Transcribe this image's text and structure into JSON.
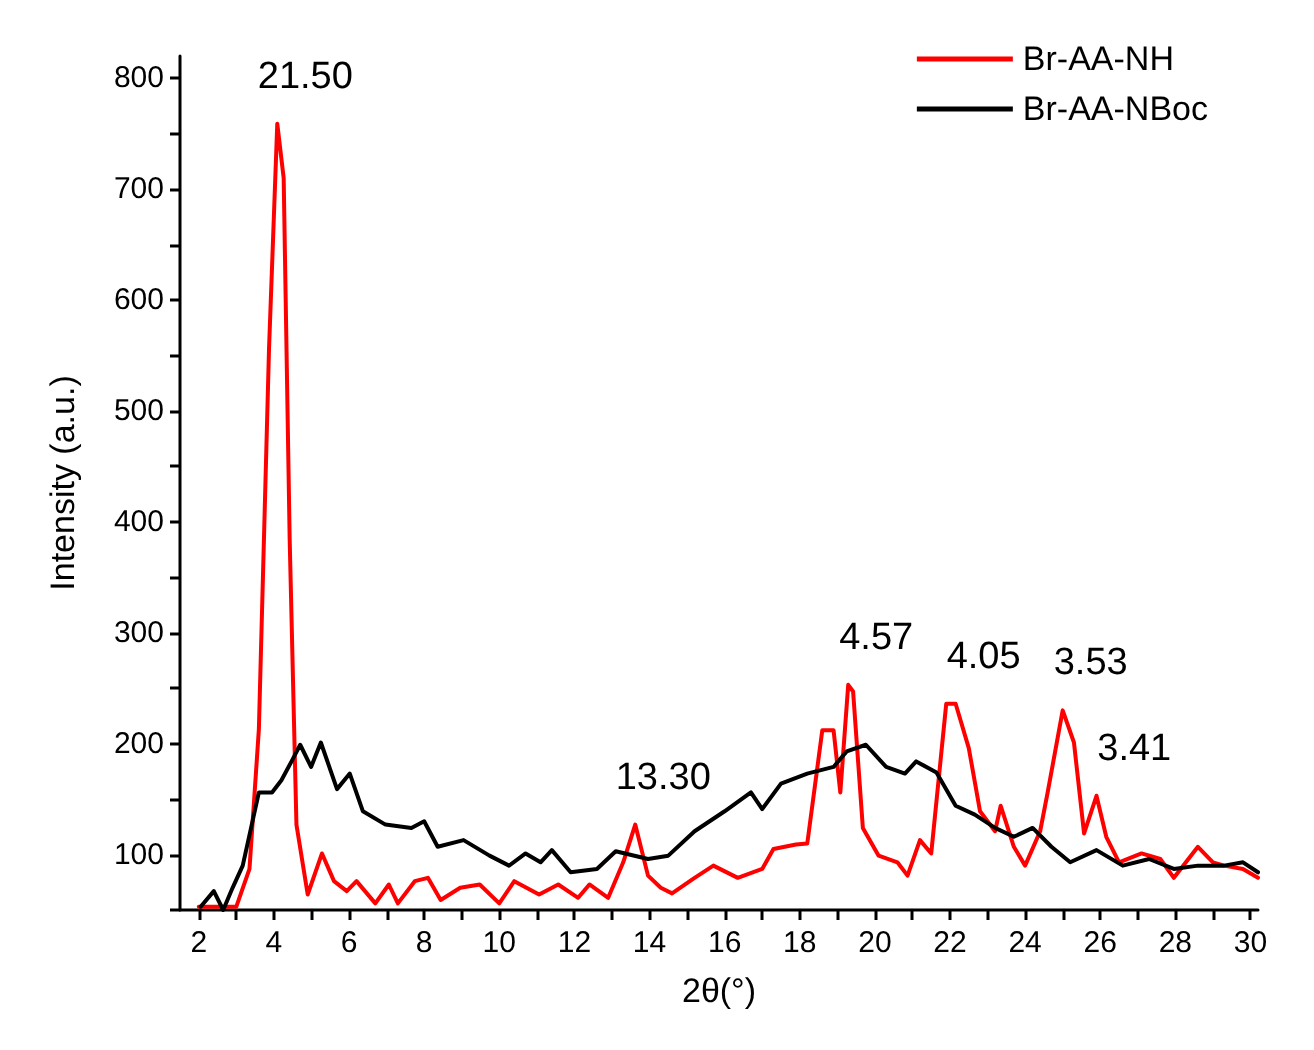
{
  "chart_data": {
    "type": "line",
    "xlabel": "2θ(°)",
    "ylabel": "Intensity (a.u.)",
    "xlim": [
      1.5,
      30.2
    ],
    "xticks": [
      2,
      {
        "value": 3,
        "label": null
      },
      4,
      {
        "value": 5,
        "label": null
      },
      6,
      {
        "value": 7,
        "label": null
      },
      8,
      {
        "value": 9,
        "label": null
      },
      10,
      {
        "value": 11,
        "label": null
      },
      12,
      {
        "value": 13,
        "label": null
      },
      14,
      {
        "value": 15,
        "label": null
      },
      16,
      {
        "value": 17,
        "label": null
      },
      18,
      {
        "value": 19,
        "label": null
      },
      20,
      {
        "value": 21,
        "label": null
      },
      22,
      {
        "value": 23,
        "label": null
      },
      24,
      {
        "value": 25,
        "label": null
      },
      26,
      {
        "value": 27,
        "label": null
      },
      28,
      {
        "value": 29,
        "label": null
      },
      30
    ],
    "ylim": [
      50,
      820
    ],
    "yticks": [
      {
        "value": 50,
        "label": null
      },
      100,
      {
        "value": 150,
        "label": null
      },
      200,
      {
        "value": 250,
        "label": null
      },
      300,
      {
        "value": 350,
        "label": null
      },
      400,
      {
        "value": 450,
        "label": null
      },
      500,
      {
        "value": 550,
        "label": null
      },
      600,
      {
        "value": 650,
        "label": null
      },
      700,
      {
        "value": 750,
        "label": null
      },
      800
    ],
    "grid": false,
    "legend": "top right",
    "marker": "none",
    "line_style": "solid",
    "series": [
      {
        "name": "Br-AA-NH",
        "color": "#ff0000",
        "x": [
          2,
          3.0,
          3.35,
          3.6,
          3.87,
          4.09,
          4.26,
          4.42,
          4.6,
          4.9,
          5.28,
          5.6,
          5.94,
          6.2,
          6.7,
          7.06,
          7.3,
          7.75,
          8.1,
          8.44,
          8.96,
          9.48,
          10.0,
          10.4,
          11.06,
          11.57,
          12.1,
          12.4,
          12.9,
          13.3,
          13.62,
          13.96,
          14.3,
          14.6,
          15.2,
          15.7,
          16.35,
          17.0,
          17.3,
          17.9,
          18.2,
          18.6,
          18.9,
          19.08,
          19.29,
          19.42,
          19.68,
          20.1,
          20.6,
          20.87,
          21.2,
          21.5,
          21.9,
          22.15,
          22.5,
          22.8,
          23.2,
          23.35,
          23.7,
          24.0,
          24.4,
          24.6,
          25.0,
          25.3,
          25.57,
          25.9,
          26.16,
          26.5,
          27.1,
          27.6,
          27.96,
          28.6,
          29.0,
          29.3,
          29.8,
          30.2
        ],
        "values": [
          53,
          53,
          87,
          213,
          556,
          759,
          710,
          384,
          127,
          64,
          101,
          76,
          67,
          76,
          56,
          73,
          56,
          76,
          79,
          59,
          70,
          73,
          56,
          76,
          64,
          73,
          61,
          73,
          61,
          93,
          127,
          81,
          70,
          65,
          79,
          90,
          79,
          87,
          105,
          109,
          110,
          212,
          212,
          156,
          253,
          247,
          124,
          99,
          93,
          81,
          113,
          101,
          236,
          236,
          196,
          139,
          121,
          144,
          107,
          90,
          121,
          156,
          230,
          201,
          119,
          153,
          116,
          93,
          101,
          96,
          79,
          107,
          93,
          90,
          87,
          79
        ]
      },
      {
        "name": "Br-AA-NBoc",
        "color": "#000000",
        "x": [
          2.05,
          2.4,
          2.65,
          2.9,
          3.17,
          3.6,
          3.95,
          4.2,
          4.47,
          4.7,
          4.99,
          5.25,
          5.68,
          6.02,
          6.37,
          6.97,
          7.66,
          8.0,
          8.36,
          9.05,
          9.74,
          10.26,
          10.7,
          11.1,
          11.4,
          11.9,
          12.6,
          13.1,
          13.96,
          14.5,
          15.2,
          16.0,
          16.7,
          17.0,
          17.5,
          18.2,
          18.9,
          19.25,
          19.76,
          20.3,
          20.8,
          21.1,
          21.64,
          22.15,
          22.66,
          23.2,
          23.7,
          24.2,
          24.7,
          25.2,
          25.9,
          26.6,
          27.3,
          27.96,
          28.6,
          29.3,
          29.8,
          30.2
        ],
        "values": [
          53,
          67,
          50,
          70,
          90,
          156,
          156,
          167,
          184,
          199,
          179,
          201,
          159,
          173,
          139,
          127,
          124,
          130,
          107,
          113,
          99,
          90,
          101,
          93,
          104,
          84,
          87,
          103,
          96,
          99,
          121,
          139,
          156,
          141,
          164,
          173,
          179,
          193,
          199,
          179,
          173,
          184,
          174,
          144,
          136,
          124,
          116,
          124,
          107,
          93,
          104,
          90,
          96,
          87,
          90,
          90,
          93,
          84
        ]
      }
    ],
    "annotations": [
      {
        "text": "21.50",
        "x": 4.09,
        "y": 759
      },
      {
        "text": "13.30",
        "x": 13.62,
        "y": 127
      },
      {
        "text": "4.57",
        "x": 19.29,
        "y": 253
      },
      {
        "text": "4.05",
        "x": 22.15,
        "y": 236
      },
      {
        "text": "3.53",
        "x": 25.0,
        "y": 230
      },
      {
        "text": "3.41",
        "x": 26.16,
        "y": 153
      }
    ]
  }
}
